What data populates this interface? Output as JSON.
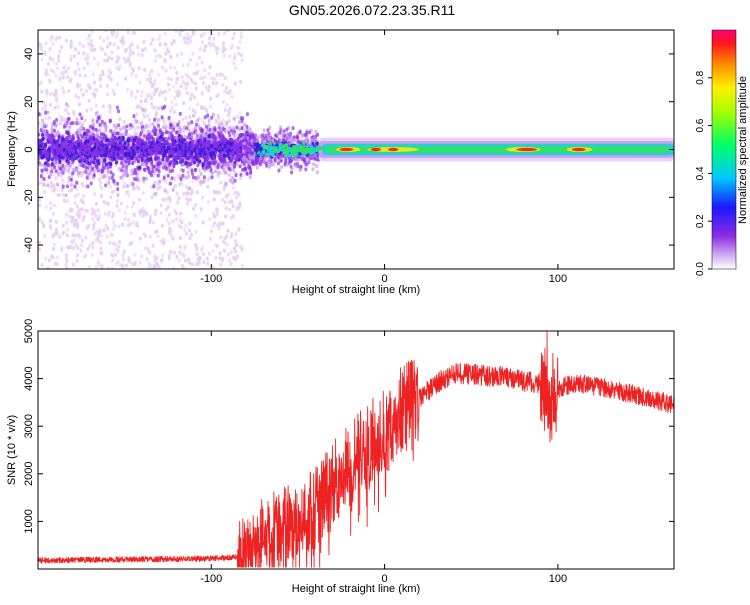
{
  "title": "GN05.2026.072.23.35.R11",
  "chart_data": [
    {
      "type": "heatmap",
      "xlabel": "Height of straight line (km)",
      "ylabel": "Frequency (Hz)",
      "xlim": [
        -200,
        167
      ],
      "ylim": [
        -50,
        50
      ],
      "xticks": [
        -100,
        0,
        100
      ],
      "yticks": [
        -40,
        -20,
        0,
        20,
        40
      ],
      "colorbar": {
        "label": "Normalized spectral amplitude",
        "range": [
          0,
          1
        ],
        "ticks": [
          "0.0",
          "0.2",
          "0.4",
          "0.6",
          "0.8"
        ],
        "tick_values": [
          0.0,
          0.2,
          0.4,
          0.6,
          0.8
        ]
      },
      "colors": {
        "faint": "#e6ccf5",
        "low": "#c79bf0",
        "mid_low": "#8b2fe8",
        "mid": "#3a1fd6",
        "cyan": "#19d0e0",
        "green": "#33e060",
        "yellow": "#e8e818",
        "high": "#ff2222"
      },
      "description_points": {
        "noise_region_end_km": -82,
        "transition_end_km": -38,
        "narrow_band_start_km": -38
      }
    },
    {
      "type": "line",
      "xlabel": "Height of straight line (km)",
      "ylabel": "SNR (10 * v/v)",
      "xlim": [
        -200,
        167
      ],
      "ylim": [
        0,
        5000
      ],
      "xticks": [
        -100,
        0,
        100
      ],
      "yticks": [
        1000,
        2000,
        3000,
        4000,
        5000
      ],
      "line_color": "#ee2222",
      "trend": {
        "x": [
          -200,
          -150,
          -100,
          -85,
          -75,
          -65,
          -50,
          -40,
          -30,
          -20,
          -10,
          0,
          10,
          20,
          30,
          40,
          50,
          60,
          70,
          80,
          90,
          94,
          96,
          100,
          110,
          120,
          140,
          167
        ],
        "y": [
          180,
          200,
          220,
          250,
          600,
          900,
          1000,
          1300,
          1800,
          2200,
          2600,
          2900,
          3300,
          3600,
          3900,
          4100,
          4100,
          4050,
          4050,
          3950,
          3900,
          3500,
          3100,
          3800,
          3900,
          3850,
          3700,
          3450
        ]
      }
    }
  ]
}
